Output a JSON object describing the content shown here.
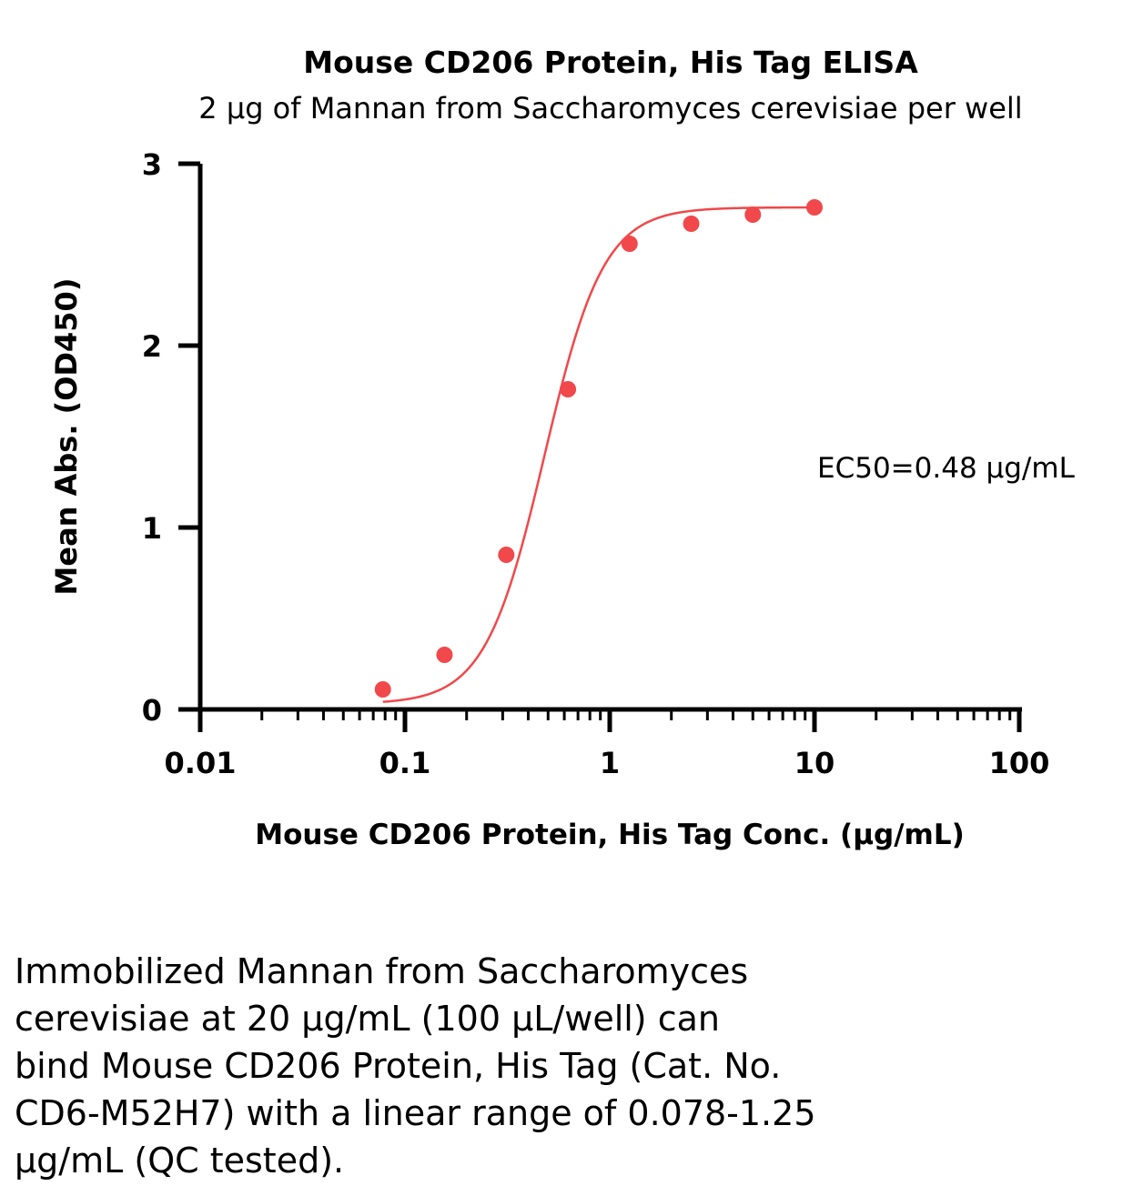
{
  "chart_data": {
    "type": "scatter",
    "title": "Mouse CD206 Protein, His Tag ELISA",
    "subtitle": "2 μg of Mannan from Saccharomyces cerevisiae per well",
    "xlabel": "Mouse CD206 Protein, His Tag Conc. (μg/mL)",
    "ylabel": "Mean Abs. (OD450)",
    "x_scale": "log",
    "xlim": [
      0.01,
      100
    ],
    "ylim": [
      0,
      3
    ],
    "x_ticks": [
      "0.01",
      "0.1",
      "1",
      "10",
      "100"
    ],
    "y_ticks": [
      "0",
      "1",
      "2",
      "3"
    ],
    "grid": false,
    "series": [
      {
        "color": "#f0484b",
        "x": [
          0.078,
          0.156,
          0.3125,
          0.625,
          1.25,
          2.5,
          5,
          10
        ],
        "y": [
          0.11,
          0.3,
          0.85,
          1.76,
          2.56,
          2.67,
          2.72,
          2.76
        ],
        "fit": {
          "model": "4PL",
          "bottom": 0.03,
          "top": 2.76,
          "ec50": 0.48,
          "hill": 3.0
        }
      }
    ],
    "annotations": [
      {
        "text": "EC50=0.48 μg/mL"
      }
    ]
  },
  "caption": {
    "lines": [
      "Immobilized Mannan from Saccharomyces",
      "cerevisiae at 20 μg/mL (100 μL/well) can",
      "bind Mouse CD206 Protein, His Tag (Cat. No.",
      "CD6-M52H7) with a linear range of 0.078-1.25",
      "μg/mL (QC tested)."
    ]
  }
}
